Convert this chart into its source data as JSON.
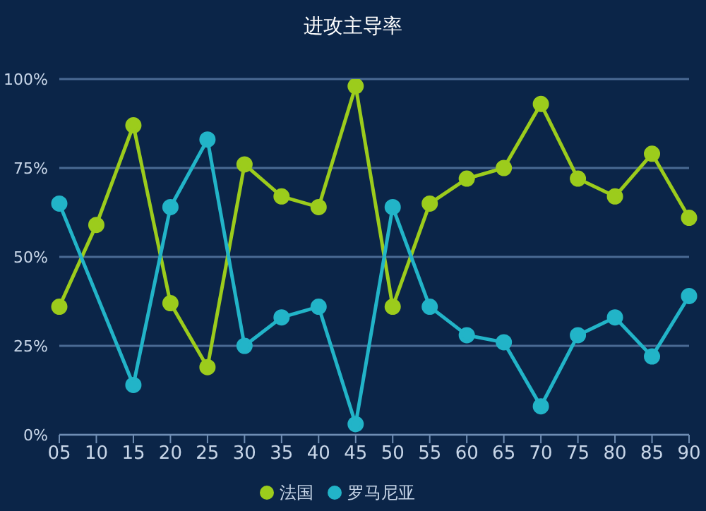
{
  "chart_data": {
    "type": "line",
    "title": "进攻主导率",
    "categories": [
      "05",
      "10",
      "15",
      "20",
      "25",
      "30",
      "35",
      "40",
      "45",
      "50",
      "55",
      "60",
      "65",
      "70",
      "75",
      "80",
      "85",
      "90"
    ],
    "series": [
      {
        "name": "法国",
        "color": "#9ccc1c",
        "values": [
          36,
          59,
          87,
          37,
          19,
          76,
          67,
          64,
          98,
          36,
          65,
          72,
          75,
          93,
          72,
          67,
          79,
          61
        ]
      },
      {
        "name": "罗马尼亚",
        "color": "#22b4c8",
        "values": [
          65,
          null,
          14,
          64,
          83,
          25,
          33,
          36,
          3,
          64,
          36,
          28,
          26,
          8,
          28,
          33,
          22,
          39
        ]
      }
    ],
    "ylim": [
      0,
      100
    ],
    "yticks": [
      {
        "value": 0,
        "label": "0%"
      },
      {
        "value": 25,
        "label": "25%"
      },
      {
        "value": 50,
        "label": "50%"
      },
      {
        "value": 75,
        "label": "75%"
      },
      {
        "value": 100,
        "label": "100%"
      }
    ],
    "grid": "y",
    "legend": "bottom",
    "marker": "circle",
    "line_style": "solid"
  }
}
